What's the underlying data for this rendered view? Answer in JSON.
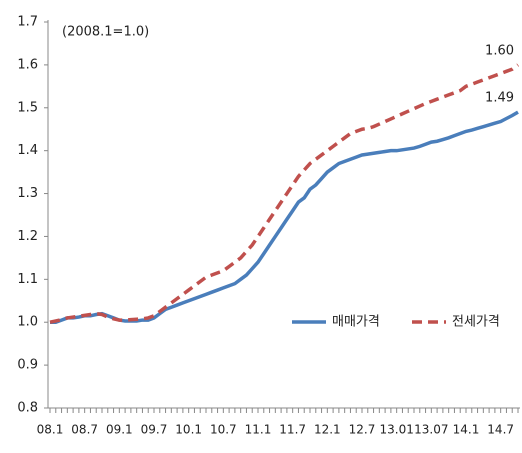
{
  "chart_data": {
    "type": "line",
    "annotation": "(2008.1=1.0)",
    "categories": [
      "08.1",
      null,
      null,
      null,
      null,
      null,
      "08.7",
      null,
      null,
      null,
      null,
      null,
      "09.1",
      null,
      null,
      null,
      null,
      null,
      "09.7",
      null,
      null,
      null,
      null,
      null,
      "10.1",
      null,
      null,
      null,
      null,
      null,
      "10.7",
      null,
      null,
      null,
      null,
      null,
      "11.1",
      null,
      null,
      null,
      null,
      null,
      "11.7",
      null,
      null,
      null,
      null,
      null,
      "12.1",
      null,
      null,
      null,
      null,
      null,
      "12.7",
      null,
      null,
      null,
      null,
      null,
      "13.01",
      null,
      null,
      null,
      null,
      null,
      "13.07",
      null,
      null,
      null,
      null,
      null,
      "14.1",
      null,
      null,
      null,
      null,
      null,
      "14.7",
      null,
      null,
      null
    ],
    "series": [
      {
        "name": "매매가격",
        "color": "#4a7ebb",
        "style": "solid",
        "values": [
          1.0,
          1.0,
          1.005,
          1.01,
          1.01,
          1.012,
          1.015,
          1.015,
          1.018,
          1.02,
          1.015,
          1.01,
          1.005,
          1.003,
          1.003,
          1.003,
          1.005,
          1.005,
          1.01,
          1.02,
          1.03,
          1.035,
          1.04,
          1.045,
          1.05,
          1.055,
          1.06,
          1.065,
          1.07,
          1.075,
          1.08,
          1.085,
          1.09,
          1.1,
          1.11,
          1.125,
          1.14,
          1.16,
          1.18,
          1.2,
          1.22,
          1.24,
          1.26,
          1.28,
          1.29,
          1.31,
          1.32,
          1.335,
          1.35,
          1.36,
          1.37,
          1.375,
          1.38,
          1.385,
          1.39,
          1.392,
          1.394,
          1.396,
          1.398,
          1.4,
          1.4,
          1.402,
          1.404,
          1.406,
          1.41,
          1.415,
          1.42,
          1.422,
          1.426,
          1.43,
          1.435,
          1.44,
          1.445,
          1.448,
          1.452,
          1.456,
          1.46,
          1.464,
          1.468,
          1.475,
          1.482,
          1.49
        ],
        "value_labels": [
          null,
          null,
          null,
          null,
          null,
          null,
          null,
          null,
          null,
          null,
          null,
          null,
          null,
          null,
          null,
          null,
          null,
          null,
          null,
          null,
          null,
          null,
          null,
          null,
          null,
          null,
          null,
          null,
          null,
          null,
          null,
          null,
          null,
          null,
          null,
          null,
          null,
          null,
          null,
          null,
          null,
          null,
          null,
          null,
          null,
          null,
          null,
          null,
          null,
          null,
          null,
          null,
          null,
          null,
          null,
          null,
          null,
          null,
          null,
          null,
          null,
          null,
          null,
          null,
          null,
          null,
          null,
          null,
          null,
          null,
          null,
          null,
          null,
          null,
          null,
          null,
          null,
          null,
          null,
          null,
          null,
          "1.49"
        ]
      },
      {
        "name": "전세가격",
        "color": "#c0504d",
        "style": "dashed",
        "values": [
          1.0,
          1.003,
          1.006,
          1.01,
          1.012,
          1.014,
          1.016,
          1.018,
          1.02,
          1.018,
          1.012,
          1.008,
          1.005,
          1.005,
          1.006,
          1.007,
          1.008,
          1.01,
          1.015,
          1.025,
          1.035,
          1.045,
          1.055,
          1.065,
          1.075,
          1.085,
          1.095,
          1.105,
          1.11,
          1.115,
          1.12,
          1.13,
          1.14,
          1.15,
          1.165,
          1.18,
          1.2,
          1.22,
          1.24,
          1.26,
          1.28,
          1.3,
          1.32,
          1.34,
          1.355,
          1.37,
          1.38,
          1.39,
          1.4,
          1.41,
          1.42,
          1.43,
          1.44,
          1.445,
          1.45,
          1.452,
          1.456,
          1.462,
          1.468,
          1.474,
          1.48,
          1.486,
          1.492,
          1.498,
          1.504,
          1.51,
          1.515,
          1.52,
          1.525,
          1.53,
          1.535,
          1.54,
          1.55,
          1.555,
          1.56,
          1.565,
          1.57,
          1.575,
          1.58,
          1.585,
          1.59,
          1.6
        ],
        "value_labels": [
          null,
          null,
          null,
          null,
          null,
          null,
          null,
          null,
          null,
          null,
          null,
          null,
          null,
          null,
          null,
          null,
          null,
          null,
          null,
          null,
          null,
          null,
          null,
          null,
          null,
          null,
          null,
          null,
          null,
          null,
          null,
          null,
          null,
          null,
          null,
          null,
          null,
          null,
          null,
          null,
          null,
          null,
          null,
          null,
          null,
          null,
          null,
          null,
          null,
          null,
          null,
          null,
          null,
          null,
          null,
          null,
          null,
          null,
          null,
          null,
          null,
          null,
          null,
          null,
          null,
          null,
          null,
          null,
          null,
          null,
          null,
          null,
          null,
          null,
          null,
          null,
          null,
          null,
          null,
          null,
          null,
          "1.60"
        ]
      }
    ],
    "ylim": [
      0.8,
      1.7
    ],
    "yticks": [
      0.8,
      0.9,
      {
        "value": 1,
        "label": "1.0"
      },
      1.1,
      1.2,
      1.3,
      1.4,
      1.5,
      1.6,
      1.7
    ],
    "grid": false,
    "legend": "right"
  }
}
